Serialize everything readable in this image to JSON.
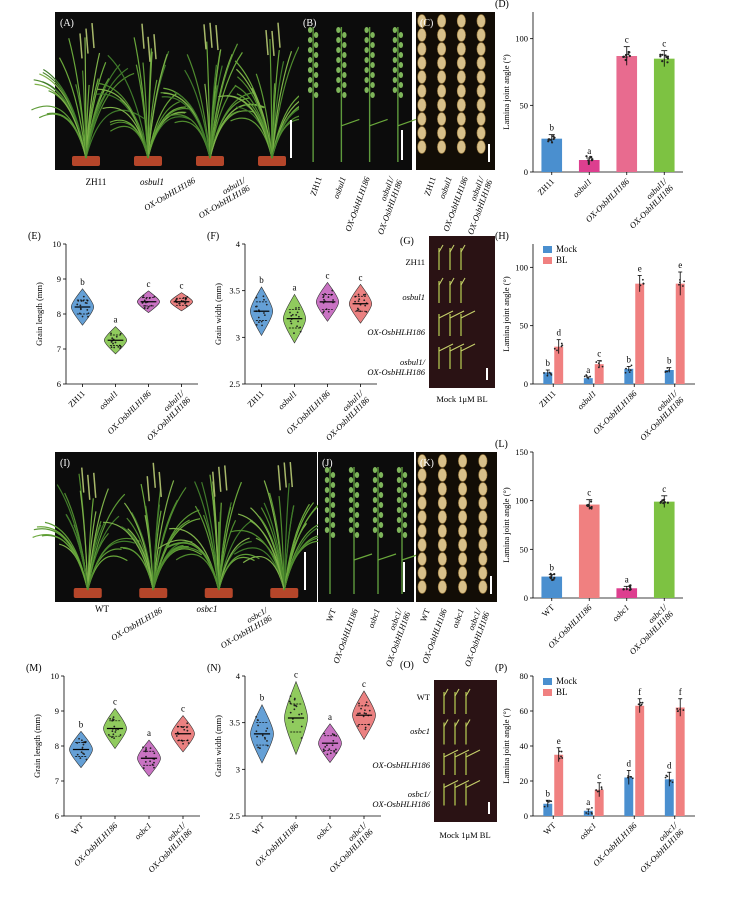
{
  "panels": {
    "A": {
      "label": "(A)",
      "genotypes": [
        "ZH11",
        "osbul1",
        "OX-OsbHLH186",
        "osbul1/ OX-OsbHLH186"
      ]
    },
    "B": {
      "label": "(B)",
      "genotypes": [
        "ZH11",
        "osbul1",
        "OX-OsbHLH186",
        "osbul1/ OX-OsbHLH186"
      ]
    },
    "C": {
      "label": "(C)",
      "genotypes": [
        "ZH11",
        "osbul1",
        "OX-OsbHLH186",
        "osbul1/ OX-OsbHLH186"
      ]
    },
    "G": {
      "label": "(G)",
      "rows": [
        "ZH11",
        "osbul1",
        "OX-OsbHLH186",
        "osbul1/ OX-OsbHLH186"
      ],
      "treatment_label": "Mock 1μM BL"
    },
    "I": {
      "label": "(I)",
      "genotypes": [
        "WT",
        "OX-OsbHLH186",
        "osbc1",
        "osbc1/ OX-OsbHLH186"
      ]
    },
    "J": {
      "label": "(J)",
      "genotypes": [
        "WT",
        "OX-OsbHLH186",
        "osbc1",
        "osbc1/ OX-OsbHLH186"
      ]
    },
    "K": {
      "label": "(K)",
      "genotypes": [
        "WT",
        "OX-OsbHLH186",
        "osbc1",
        "osbc1/ OX-OsbHLH186"
      ]
    },
    "O": {
      "label": "(O)",
      "rows": [
        "WT",
        "osbc1",
        "OX-OsbHLH186",
        "osbc1/ OX-OsbHLH186"
      ],
      "treatment_label": "Mock 1μM BL"
    }
  },
  "chart_data": [
    {
      "id": "D",
      "label": "(D)",
      "type": "bar",
      "ylabel": "Lamina joint angle (°)",
      "ylim": [
        0,
        120
      ],
      "yticks": [
        0,
        50,
        100
      ],
      "categories": [
        "ZH11",
        "osbul1",
        "OX-OsbHLH186",
        "osbul1/ OX-OsbHLH186"
      ],
      "values": [
        25,
        9,
        87,
        85
      ],
      "errors": [
        3,
        1.5,
        7,
        6
      ],
      "letters": [
        "b",
        "a",
        "c",
        "c"
      ],
      "colors": [
        "#4a8fcf",
        "#dd3f8f",
        "#e86b8f",
        "#7dc242"
      ]
    },
    {
      "id": "E",
      "label": "(E)",
      "type": "violin",
      "ylabel": "Grain length (mm)",
      "ylim": [
        6,
        10
      ],
      "yticks": [
        6,
        7,
        8,
        9,
        10
      ],
      "categories": [
        "ZH11",
        "osbul1",
        "OX-OsbHLH186",
        "osbul1/ OX-OsbHLH186"
      ],
      "values": [
        8.2,
        7.25,
        8.35,
        8.35
      ],
      "spread": [
        0.2,
        0.15,
        0.12,
        0.1
      ],
      "letters": [
        "b",
        "a",
        "c",
        "c"
      ],
      "colors": [
        "#4a8fcf",
        "#7dc242",
        "#c05ab8",
        "#e86b6b"
      ]
    },
    {
      "id": "F",
      "label": "(F)",
      "type": "violin",
      "ylabel": "Grain width (mm)",
      "ylim": [
        2.5,
        4.0
      ],
      "yticks": [
        2.5,
        3.0,
        3.5,
        4.0
      ],
      "categories": [
        "ZH11",
        "osbul1",
        "OX-OsbHLH186",
        "osbul1/ OX-OsbHLH186"
      ],
      "values": [
        3.28,
        3.2,
        3.38,
        3.36
      ],
      "spread": [
        0.1,
        0.1,
        0.08,
        0.08
      ],
      "letters": [
        "b",
        "a",
        "c",
        "c"
      ],
      "colors": [
        "#4a8fcf",
        "#7dc242",
        "#c05ab8",
        "#e86b6b"
      ]
    },
    {
      "id": "H",
      "label": "(H)",
      "type": "bar",
      "ylabel": "Lamina joint angle (°)",
      "ylim": [
        0,
        120
      ],
      "yticks": [
        0,
        50,
        100
      ],
      "categories": [
        "ZH11",
        "osbul1",
        "OX-OsbHLH186",
        "osbul1/ OX-OsbHLH186"
      ],
      "series": [
        {
          "name": "Mock",
          "color": "#4a8fcf",
          "values": [
            10,
            5,
            13,
            12
          ],
          "errors": [
            2,
            1,
            2,
            2
          ],
          "letters": [
            "b",
            "a",
            "b",
            "b"
          ]
        },
        {
          "name": "BL",
          "color": "#f08080",
          "values": [
            32,
            17,
            86,
            86
          ],
          "errors": [
            6,
            3,
            7,
            10
          ],
          "letters": [
            "d",
            "c",
            "e",
            "e"
          ]
        }
      ],
      "legend": "top-left"
    },
    {
      "id": "L",
      "label": "(L)",
      "type": "bar",
      "ylabel": "Lamina joint angle (°)",
      "ylim": [
        0,
        150
      ],
      "yticks": [
        0,
        50,
        100,
        150
      ],
      "categories": [
        "WT",
        "OX-OsbHLH186",
        "osbc1",
        "osbc1/ OX-OsbHLH186"
      ],
      "values": [
        22,
        96,
        10,
        99
      ],
      "errors": [
        2,
        5,
        2,
        6
      ],
      "letters": [
        "b",
        "c",
        "a",
        "c"
      ],
      "colors": [
        "#4a8fcf",
        "#f08080",
        "#dd3f8f",
        "#7dc242"
      ]
    },
    {
      "id": "M",
      "label": "(M)",
      "type": "violin",
      "ylabel": "Grain length (mm)",
      "ylim": [
        6,
        10
      ],
      "yticks": [
        6,
        7,
        8,
        9,
        10
      ],
      "categories": [
        "WT",
        "OX-OsbHLH186",
        "osbc1",
        "osbc1/ OX-OsbHLH186"
      ],
      "values": [
        7.9,
        8.5,
        7.65,
        8.35
      ],
      "spread": [
        0.2,
        0.22,
        0.2,
        0.2
      ],
      "letters": [
        "b",
        "c",
        "a",
        "c"
      ],
      "colors": [
        "#4a8fcf",
        "#7dc242",
        "#c05ab8",
        "#e86b6b"
      ]
    },
    {
      "id": "N",
      "label": "(N)",
      "type": "violin",
      "ylabel": "Grain width (mm)",
      "ylim": [
        2.5,
        4.0
      ],
      "yticks": [
        2.5,
        3.0,
        3.5,
        4.0
      ],
      "categories": [
        "WT",
        "OX-OsbHLH186",
        "osbc1",
        "osbc1/ OX-OsbHLH186"
      ],
      "values": [
        3.38,
        3.55,
        3.28,
        3.58
      ],
      "spread": [
        0.12,
        0.15,
        0.08,
        0.1
      ],
      "letters": [
        "b",
        "c",
        "a",
        "c"
      ],
      "colors": [
        "#4a8fcf",
        "#7dc242",
        "#c05ab8",
        "#e86b6b"
      ]
    },
    {
      "id": "P",
      "label": "(P)",
      "type": "bar",
      "ylabel": "Lamina joint angle (°)",
      "ylim": [
        0,
        80
      ],
      "yticks": [
        0,
        20,
        40,
        60,
        80
      ],
      "categories": [
        "WT",
        "osbc1",
        "OX-OsbHLH186",
        "osbc1/ OX-OsbHLH186"
      ],
      "series": [
        {
          "name": "Mock",
          "color": "#4a8fcf",
          "values": [
            7,
            3,
            22,
            21
          ],
          "errors": [
            2,
            1,
            4,
            4
          ],
          "letters": [
            "b",
            "a",
            "d",
            "d"
          ]
        },
        {
          "name": "BL",
          "color": "#f08080",
          "values": [
            35,
            15,
            63,
            62
          ],
          "errors": [
            4,
            4,
            4,
            5
          ],
          "letters": [
            "e",
            "c",
            "f",
            "f"
          ]
        }
      ],
      "legend": "top-left"
    }
  ]
}
